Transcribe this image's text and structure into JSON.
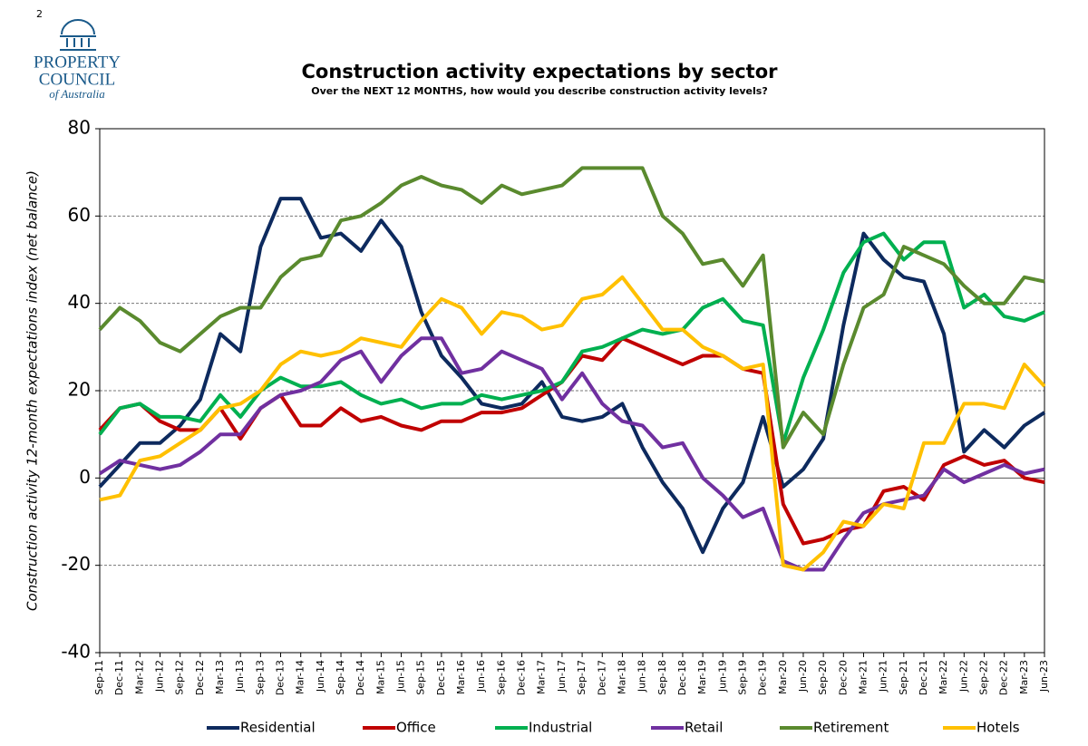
{
  "page_number": "2",
  "logo": {
    "line1": "PROPERTY",
    "line2": "COUNCIL",
    "line3": "of Australia"
  },
  "chart_data": {
    "type": "line",
    "title": "Construction activity expectations by sector",
    "subtitle": "Over the NEXT 12 MONTHS, how would you describe construction activity levels?",
    "y_label": "Construction activity 12-month expectations index (net balance)",
    "categories": [
      "Sep-11",
      "Dec-11",
      "Mar-12",
      "Jun-12",
      "Sep-12",
      "Dec-12",
      "Mar-13",
      "Jun-13",
      "Sep-13",
      "Dec-13",
      "Mar-14",
      "Jun-14",
      "Sep-14",
      "Dec-14",
      "Mar-15",
      "Jun-15",
      "Sep-15",
      "Dec-15",
      "Mar-16",
      "Jun-16",
      "Sep-16",
      "Dec-16",
      "Mar-17",
      "Jun-17",
      "Sep-17",
      "Dec-17",
      "Mar-18",
      "Jun-18",
      "Sep-18",
      "Dec-18",
      "Mar-19",
      "Jun-19",
      "Sep-19",
      "Dec-19",
      "Mar-20",
      "Jun-20",
      "Sep-20",
      "Dec-20",
      "Mar-21",
      "Jun-21",
      "Sep-21",
      "Dec-21",
      "Mar-22",
      "Jun-22",
      "Sep-22",
      "Dec-22",
      "Mar-23",
      "Jun-23"
    ],
    "series": [
      {
        "name": "Residential",
        "color": "#0d2a5e",
        "values": [
          -2,
          3,
          8,
          8,
          12,
          18,
          33,
          29,
          53,
          64,
          64,
          55,
          56,
          52,
          59,
          53,
          38,
          28,
          23,
          17,
          16,
          17,
          22,
          14,
          13,
          14,
          17,
          7,
          -1,
          -7,
          -17,
          -7,
          -1,
          14,
          -2,
          2,
          9,
          35,
          56,
          50,
          46,
          45,
          33,
          6,
          11,
          7,
          12,
          15
        ]
      },
      {
        "name": "Office",
        "color": "#c00000",
        "values": [
          11,
          16,
          17,
          13,
          11,
          11,
          16,
          9,
          16,
          19,
          12,
          12,
          16,
          13,
          14,
          12,
          11,
          13,
          13,
          15,
          15,
          16,
          19,
          22,
          28,
          27,
          32,
          30,
          28,
          26,
          28,
          28,
          25,
          24,
          -6,
          -15,
          -14,
          -12,
          -11,
          -3,
          -2,
          -5,
          3,
          5,
          3,
          4,
          0,
          -1
        ]
      },
      {
        "name": "Industrial",
        "color": "#00b050",
        "values": [
          10,
          16,
          17,
          14,
          14,
          13,
          19,
          14,
          20,
          23,
          21,
          21,
          22,
          19,
          17,
          18,
          16,
          17,
          17,
          19,
          18,
          19,
          20,
          22,
          29,
          30,
          32,
          34,
          33,
          34,
          39,
          41,
          36,
          35,
          8,
          23,
          34,
          47,
          54,
          56,
          50,
          54,
          54,
          39,
          42,
          37,
          36,
          38
        ]
      },
      {
        "name": "Retail",
        "color": "#7030a0",
        "values": [
          1,
          4,
          3,
          2,
          3,
          6,
          10,
          10,
          16,
          19,
          20,
          22,
          27,
          29,
          22,
          28,
          32,
          32,
          24,
          25,
          29,
          27,
          25,
          18,
          24,
          17,
          13,
          12,
          7,
          8,
          0,
          -4,
          -9,
          -7,
          -19,
          -21,
          -21,
          -14,
          -8,
          -6,
          -5,
          -4,
          2,
          -1,
          1,
          3,
          1,
          2
        ]
      },
      {
        "name": "Retirement",
        "color": "#5a8a2e",
        "values": [
          34,
          39,
          36,
          31,
          29,
          33,
          37,
          39,
          39,
          46,
          50,
          51,
          59,
          60,
          63,
          67,
          69,
          67,
          66,
          63,
          67,
          65,
          66,
          67,
          71,
          71,
          71,
          71,
          60,
          56,
          49,
          50,
          44,
          51,
          7,
          15,
          10,
          26,
          39,
          42,
          53,
          51,
          49,
          44,
          40,
          40,
          46,
          45
        ]
      },
      {
        "name": "Hotels",
        "color": "#ffc000",
        "values": [
          -5,
          -4,
          4,
          5,
          8,
          11,
          16,
          17,
          20,
          26,
          29,
          28,
          29,
          32,
          31,
          30,
          36,
          41,
          39,
          33,
          38,
          37,
          34,
          35,
          41,
          42,
          46,
          40,
          34,
          34,
          30,
          28,
          25,
          26,
          -20,
          -21,
          -17,
          -10,
          -11,
          -6,
          -7,
          8,
          8,
          17,
          17,
          16,
          26,
          21
        ]
      }
    ],
    "ylim": [
      -40,
      80
    ],
    "yticks": [
      -40,
      -20,
      0,
      20,
      40,
      60,
      80
    ],
    "grid": true,
    "legend": "bottom"
  }
}
